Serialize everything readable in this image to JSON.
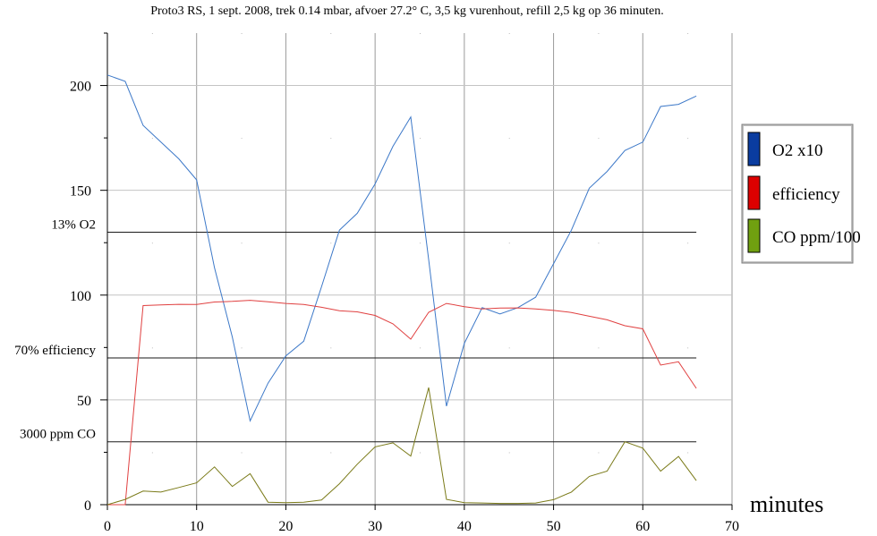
{
  "chart_data": {
    "type": "line",
    "title": "Proto3 RS, 1 sept. 2008, trek 0.14 mbar, afvoer 27.2° C, 3,5 kg vurenhout, refill 2,5 kg op 36 minuten.",
    "xlabel": "minutes",
    "ylabel": "",
    "xlim": [
      0,
      70
    ],
    "ylim": [
      0,
      225
    ],
    "x_ticks": [
      0,
      10,
      20,
      30,
      40,
      50,
      60,
      70
    ],
    "y_ticks": [
      0,
      50,
      100,
      150,
      200
    ],
    "y_minor_ticks": [
      25,
      75,
      125,
      175,
      225
    ],
    "grid": true,
    "legend_position": "right",
    "reference_lines": [
      {
        "label": "13% O2",
        "y": 130
      },
      {
        "label": "70% efficiency",
        "y": 70
      },
      {
        "label": "3000 ppm CO",
        "y": 30
      }
    ],
    "x": [
      0,
      2,
      4,
      6,
      8,
      10,
      12,
      14,
      16,
      18,
      20,
      22,
      24,
      26,
      28,
      30,
      32,
      34,
      36,
      38,
      40,
      42,
      44,
      46,
      48,
      50,
      52,
      54,
      56,
      58,
      60,
      62,
      64,
      66
    ],
    "series": [
      {
        "name": "O2 x10",
        "color": "#3c78c8",
        "legend_color": "#0a3ca0",
        "values": [
          205,
          202,
          181,
          173,
          165,
          155,
          113,
          80,
          40,
          58,
          71,
          78,
          104,
          131,
          139,
          153,
          171,
          185,
          117,
          47,
          77,
          94,
          91,
          94,
          99,
          115,
          131,
          151,
          159,
          169,
          173,
          190,
          191,
          195
        ]
      },
      {
        "name": "efficiency",
        "color": "#e04040",
        "legend_color": "#dd0000",
        "values": [
          0,
          0,
          95,
          95.3,
          95.6,
          95.5,
          96.7,
          97,
          97.5,
          96.8,
          96,
          95.5,
          94.2,
          92.5,
          92,
          90.3,
          86.3,
          79,
          91.8,
          96,
          94.5,
          93.4,
          93.8,
          93.9,
          93.4,
          92.7,
          91.7,
          89.9,
          88.2,
          85.4,
          83.9,
          66.6,
          68.2,
          55.5
        ]
      },
      {
        "name": "CO ppm/100",
        "color": "#7a7a18",
        "legend_color": "#70a010",
        "values": [
          0,
          2.5,
          6.5,
          6,
          8.2,
          10.4,
          18,
          8.7,
          14.8,
          1.2,
          1,
          1.2,
          2.2,
          10,
          19.3,
          27.6,
          29.5,
          23.2,
          55.9,
          2.5,
          1,
          0.8,
          0.6,
          0.6,
          0.8,
          2.4,
          6,
          13.5,
          16,
          30,
          27,
          16,
          23,
          11.5
        ]
      }
    ]
  }
}
